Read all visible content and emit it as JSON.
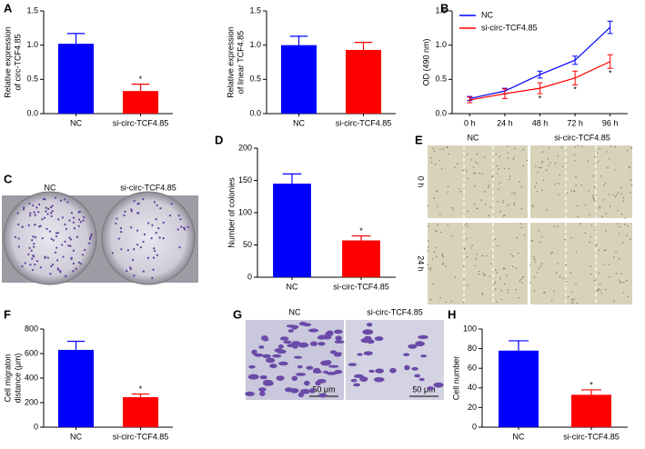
{
  "chart_data": [
    {
      "type": "bar",
      "ylabel": [
        "Relative expression",
        "of circ-TCF4.85"
      ],
      "categories": [
        "NC",
        "si-circ-TCF4.85"
      ],
      "values": [
        1.02,
        0.33
      ],
      "errors": [
        0.15,
        0.1
      ],
      "colors": [
        "#0000ff",
        "#ff0000"
      ],
      "significance": [
        null,
        "*"
      ],
      "ylim": [
        0,
        1.5
      ],
      "yticks": [
        {
          "value": 0,
          "label": "0.0"
        },
        0.5,
        {
          "value": 1,
          "label": "1.0"
        },
        {
          "value": 1.5,
          "label": "1.5"
        }
      ]
    },
    {
      "type": "bar",
      "ylabel": [
        "Relative expression",
        "of linear TCF4.85"
      ],
      "categories": [
        "NC",
        "si-circ-TCF4.85"
      ],
      "values": [
        1.0,
        0.93
      ],
      "errors": [
        0.13,
        0.11
      ],
      "colors": [
        "#0000ff",
        "#ff0000"
      ],
      "significance": [
        null,
        null
      ],
      "ylim": [
        0,
        1.5
      ],
      "yticks": [
        {
          "value": 0,
          "label": "0.0"
        },
        0.5,
        {
          "value": 1,
          "label": "1.0"
        },
        {
          "value": 1.5,
          "label": "1.5"
        }
      ]
    },
    {
      "type": "line",
      "ylabel": [
        "OD (490 nm)"
      ],
      "categories": [
        "0 h",
        "24 h",
        "48 h",
        "72 h",
        "96 h"
      ],
      "series": [
        {
          "name": "NC",
          "color": "#0000ff",
          "values": [
            0.22,
            0.33,
            0.57,
            0.78,
            1.26
          ],
          "errors": [
            0.03,
            0.04,
            0.05,
            0.06,
            0.09
          ],
          "significance": [
            null,
            null,
            null,
            null,
            null
          ]
        },
        {
          "name": "si-circ-TCF4.85",
          "color": "#ff0000",
          "values": [
            0.2,
            0.29,
            0.37,
            0.52,
            0.76
          ],
          "errors": [
            0.04,
            0.07,
            0.08,
            0.1,
            0.1
          ],
          "significance": [
            null,
            null,
            "*",
            "*",
            "*"
          ]
        }
      ],
      "legend": "upper-left",
      "ylim": [
        0,
        1.5
      ],
      "yticks": [
        {
          "value": 0,
          "label": "0.0"
        },
        0.5,
        {
          "value": 1,
          "label": "1.0"
        },
        {
          "value": 1.5,
          "label": "1.5"
        }
      ]
    },
    {
      "type": "bar",
      "ylabel": [
        "Number of colonies"
      ],
      "categories": [
        "NC",
        "si-circ-TCF4.85"
      ],
      "values": [
        145,
        57
      ],
      "errors": [
        15,
        7
      ],
      "colors": [
        "#0000ff",
        "#ff0000"
      ],
      "significance": [
        null,
        "*"
      ],
      "ylim": [
        0,
        200
      ],
      "yticks": [
        0,
        50,
        100,
        150,
        200
      ]
    },
    {
      "type": "bar",
      "ylabel": [
        "Cell migraton",
        "distance (μm)"
      ],
      "categories": [
        "NC",
        "si-circ-TCF4.85"
      ],
      "values": [
        630,
        245
      ],
      "errors": [
        70,
        25
      ],
      "colors": [
        "#0000ff",
        "#ff0000"
      ],
      "significance": [
        null,
        "*"
      ],
      "ylim": [
        0,
        800
      ],
      "yticks": [
        0,
        200,
        400,
        600,
        800
      ]
    },
    {
      "type": "bar",
      "ylabel": [
        "Cell number"
      ],
      "categories": [
        "NC",
        "si-circ-TCF4.85"
      ],
      "values": [
        78,
        33
      ],
      "errors": [
        10,
        5
      ],
      "colors": [
        "#0000ff",
        "#ff0000"
      ],
      "significance": [
        null,
        "*"
      ],
      "ylim": [
        0,
        100
      ],
      "yticks": [
        0,
        20,
        40,
        60,
        80,
        100
      ]
    }
  ],
  "panel_letters": [
    "A",
    "B",
    "C",
    "D",
    "E",
    "F",
    "G",
    "H"
  ],
  "panel_c": {
    "columns": [
      "NC",
      "si-circ-TCF4.85"
    ]
  },
  "panel_e": {
    "columns": [
      "NC",
      "si-circ-TCF4.85"
    ],
    "rows": [
      "0 h",
      "24 h"
    ]
  },
  "panel_g": {
    "columns": [
      "NC",
      "si-circ-TCF4.85"
    ],
    "scale_bars": [
      "50 μm",
      "50 μm"
    ]
  }
}
